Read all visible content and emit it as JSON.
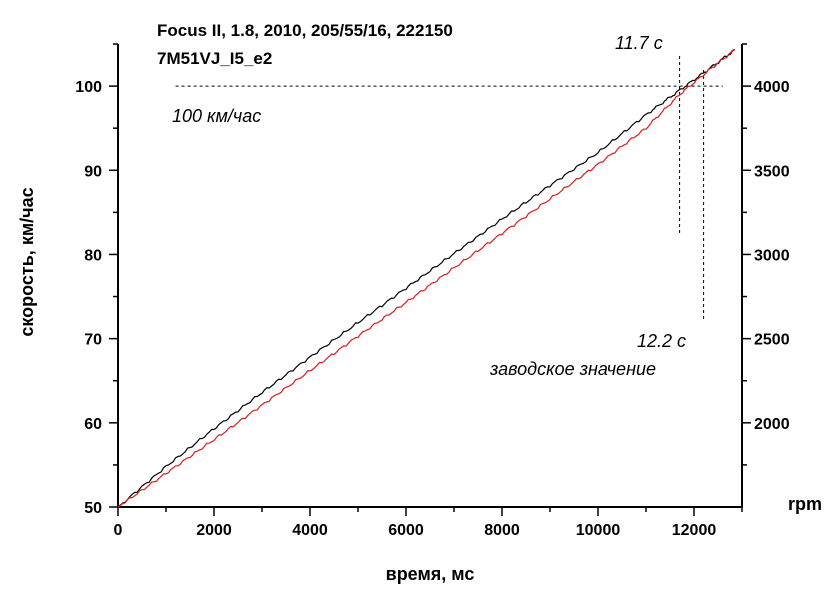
{
  "chart_data": {
    "type": "line",
    "title_lines": [
      "Focus II, 1.8, 2010, 205/55/16, 222150",
      "7M51VJ_I5_e2"
    ],
    "xlabel": "время, мс",
    "ylabel": "скорость, км/час",
    "y2label": "rpm",
    "xlim": [
      0,
      13000
    ],
    "ylim": [
      50,
      105
    ],
    "y2lim": [
      1500,
      4250
    ],
    "x_ticks": [
      0,
      2000,
      4000,
      6000,
      8000,
      10000,
      12000
    ],
    "y_ticks": [
      50,
      60,
      70,
      80,
      90,
      100
    ],
    "y2_ticks": [
      2000,
      2500,
      3000,
      3500,
      4000
    ],
    "series": [
      {
        "color": "#000000",
        "x": [
          0,
          1000,
          2000,
          3000,
          4000,
          5000,
          6000,
          7000,
          8000,
          9000,
          10000,
          11000,
          11700,
          12400,
          12850
        ],
        "y": [
          50,
          54.8,
          59.3,
          63.6,
          67.8,
          71.9,
          76.0,
          80.1,
          84.2,
          88.2,
          92.1,
          96.6,
          99.5,
          102.4,
          104.3
        ]
      },
      {
        "color": "#d81e1e",
        "x": [
          0,
          1000,
          2000,
          3000,
          4000,
          5000,
          6000,
          7000,
          8000,
          9000,
          10000,
          11000,
          11700,
          12400,
          12850
        ],
        "y": [
          50,
          54.0,
          58.0,
          62.1,
          66.2,
          70.3,
          74.3,
          78.4,
          82.5,
          86.6,
          90.7,
          95.0,
          99.0,
          102.3,
          104.3
        ]
      }
    ],
    "annotations": {
      "ref_100_label": "100 км/час",
      "ref_100_value": 100,
      "t1_label": "11.7 с",
      "t1_value": 11700,
      "t2_label": "12.2 с",
      "t2_value": 12200,
      "t2_sublabel": "заводское значение"
    }
  }
}
